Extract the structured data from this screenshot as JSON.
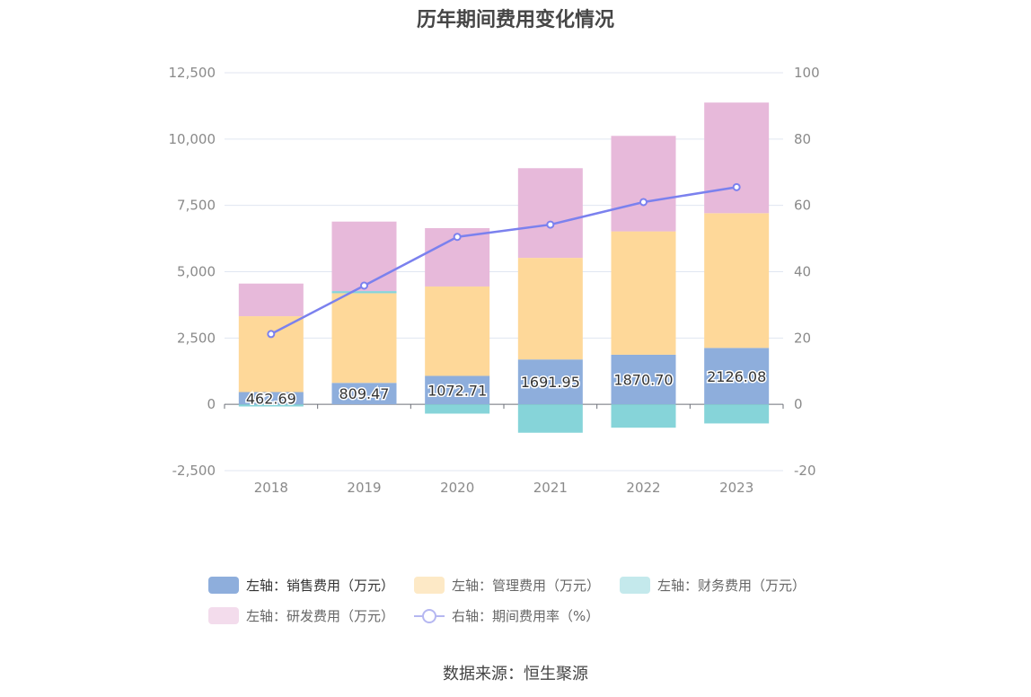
{
  "title": "历年期间费用变化情况",
  "source": "数据来源：恒生聚源",
  "chart_data": {
    "type": "bar",
    "stacked": true,
    "categories": [
      "2018",
      "2019",
      "2020",
      "2021",
      "2022",
      "2023"
    ],
    "y_left": {
      "min": -2500,
      "max": 12500,
      "ticks": [
        "-2,500",
        "0",
        "2,500",
        "5,000",
        "7,500",
        "10,000",
        "12,500"
      ]
    },
    "y_right": {
      "min": -20,
      "max": 100,
      "ticks": [
        "-20",
        "0",
        "20",
        "40",
        "60",
        "80",
        "100"
      ]
    },
    "grid": true,
    "legend_position": "bottom",
    "series": [
      {
        "name": "左轴：销售费用（万元）",
        "axis": "left",
        "color": "#8eaedc",
        "values": [
          462.69,
          809.47,
          1072.71,
          1691.95,
          1870.7,
          2126.08
        ],
        "labels": [
          "462.69",
          "809.47",
          "1072.71",
          "1691.95",
          "1870.70",
          "2126.08"
        ]
      },
      {
        "name": "左轴：管理费用（万元）",
        "axis": "left",
        "color": "#fed899",
        "values": [
          2860,
          3380,
          3370,
          3830,
          4650,
          5080
        ]
      },
      {
        "name": "左轴：财务费用（万元）",
        "axis": "left",
        "color": "#86d4d9",
        "values": [
          -80,
          80,
          -350,
          -1070,
          -880,
          -720
        ]
      },
      {
        "name": "左轴：研发费用（万元）",
        "axis": "left",
        "color": "#e7b9da",
        "values": [
          1230,
          2620,
          2200,
          3380,
          3600,
          4170
        ]
      },
      {
        "name": "右轴：期间费用率（%）",
        "axis": "right",
        "type": "line",
        "color": "#7b81ee",
        "values": [
          21.2,
          35.8,
          50.5,
          54.2,
          61.0,
          65.5
        ]
      }
    ]
  }
}
